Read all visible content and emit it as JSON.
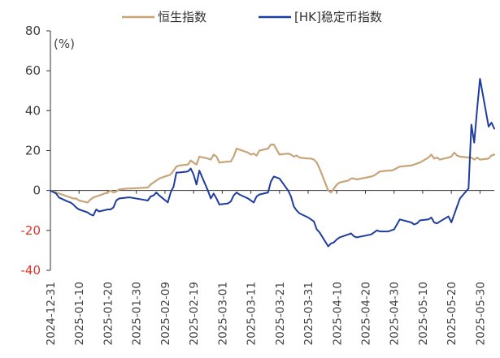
{
  "chart_data": {
    "type": "line",
    "unit_label": "(%)",
    "ylim": [
      -40,
      80
    ],
    "yticks": [
      -40,
      -20,
      0,
      20,
      40,
      60,
      80
    ],
    "xlim": [
      "2024-12-31",
      "2025-06-04"
    ],
    "xticks": [
      "2024-12-31",
      "2025-01-10",
      "2025-01-20",
      "2025-01-30",
      "2025-02-09",
      "2025-02-19",
      "2025-03-01",
      "2025-03-11",
      "2025-03-21",
      "2025-03-31",
      "2025-04-10",
      "2025-04-20",
      "2025-04-30",
      "2025-05-10",
      "2025-05-20",
      "2025-05-30"
    ],
    "grid": false,
    "legend_position": "top",
    "series": [
      {
        "name": "恒生指数",
        "color": "#c8a478",
        "points": [
          [
            "2024-12-31",
            0
          ],
          [
            "2025-01-02",
            -1
          ],
          [
            "2025-01-03",
            -1.5
          ],
          [
            "2025-01-06",
            -3
          ],
          [
            "2025-01-07",
            -3.5
          ],
          [
            "2025-01-08",
            -4
          ],
          [
            "2025-01-09",
            -4
          ],
          [
            "2025-01-10",
            -5
          ],
          [
            "2025-01-13",
            -6
          ],
          [
            "2025-01-14",
            -4.5
          ],
          [
            "2025-01-15",
            -3.5
          ],
          [
            "2025-01-16",
            -3
          ],
          [
            "2025-01-17",
            -2.5
          ],
          [
            "2025-01-20",
            -1
          ],
          [
            "2025-01-21",
            0
          ],
          [
            "2025-01-22",
            -1
          ],
          [
            "2025-01-23",
            -0.5
          ],
          [
            "2025-01-24",
            0.5
          ],
          [
            "2025-01-27",
            1
          ],
          [
            "2025-01-28",
            1
          ],
          [
            "2025-02-03",
            1.5
          ],
          [
            "2025-02-04",
            3
          ],
          [
            "2025-02-05",
            4
          ],
          [
            "2025-02-06",
            5
          ],
          [
            "2025-02-07",
            6
          ],
          [
            "2025-02-10",
            7.5
          ],
          [
            "2025-02-11",
            8
          ],
          [
            "2025-02-12",
            10
          ],
          [
            "2025-02-13",
            12
          ],
          [
            "2025-02-14",
            12.5
          ],
          [
            "2025-02-17",
            13
          ],
          [
            "2025-02-18",
            15
          ],
          [
            "2025-02-19",
            14
          ],
          [
            "2025-02-20",
            13
          ],
          [
            "2025-02-21",
            17
          ],
          [
            "2025-02-24",
            16
          ],
          [
            "2025-02-25",
            15.5
          ],
          [
            "2025-02-26",
            18
          ],
          [
            "2025-02-27",
            17
          ],
          [
            "2025-02-28",
            14
          ],
          [
            "2025-03-03",
            14.5
          ],
          [
            "2025-03-04",
            14.5
          ],
          [
            "2025-03-05",
            17
          ],
          [
            "2025-03-06",
            21
          ],
          [
            "2025-03-07",
            20.5
          ],
          [
            "2025-03-10",
            19
          ],
          [
            "2025-03-11",
            18
          ],
          [
            "2025-03-12",
            18.5
          ],
          [
            "2025-03-13",
            17.5
          ],
          [
            "2025-03-14",
            20
          ],
          [
            "2025-03-17",
            21
          ],
          [
            "2025-03-18",
            23
          ],
          [
            "2025-03-19",
            23
          ],
          [
            "2025-03-20",
            20.5
          ],
          [
            "2025-03-21",
            18
          ],
          [
            "2025-03-24",
            18.5
          ],
          [
            "2025-03-25",
            18
          ],
          [
            "2025-03-26",
            17
          ],
          [
            "2025-03-27",
            17.5
          ],
          [
            "2025-03-28",
            16.5
          ],
          [
            "2025-03-31",
            16
          ],
          [
            "2025-04-01",
            16
          ],
          [
            "2025-04-02",
            15.5
          ],
          [
            "2025-04-03",
            14
          ],
          [
            "2025-04-04",
            11
          ],
          [
            "2025-04-07",
            0
          ],
          [
            "2025-04-08",
            -1
          ],
          [
            "2025-04-09",
            1
          ],
          [
            "2025-04-10",
            3
          ],
          [
            "2025-04-11",
            4
          ],
          [
            "2025-04-14",
            5
          ],
          [
            "2025-04-15",
            6
          ],
          [
            "2025-04-16",
            6
          ],
          [
            "2025-04-17",
            5.5
          ],
          [
            "2025-04-22",
            7
          ],
          [
            "2025-04-23",
            7.5
          ],
          [
            "2025-04-24",
            8.5
          ],
          [
            "2025-04-25",
            9.5
          ],
          [
            "2025-04-28",
            10
          ],
          [
            "2025-04-29",
            10
          ],
          [
            "2025-04-30",
            10.5
          ],
          [
            "2025-05-02",
            12
          ],
          [
            "2025-05-06",
            12.5
          ],
          [
            "2025-05-07",
            13
          ],
          [
            "2025-05-08",
            13.5
          ],
          [
            "2025-05-09",
            14
          ],
          [
            "2025-05-12",
            16.5
          ],
          [
            "2025-05-13",
            18
          ],
          [
            "2025-05-14",
            16
          ],
          [
            "2025-05-15",
            16.5
          ],
          [
            "2025-05-16",
            15.5
          ],
          [
            "2025-05-19",
            16.5
          ],
          [
            "2025-05-20",
            17
          ],
          [
            "2025-05-21",
            19
          ],
          [
            "2025-05-22",
            17.5
          ],
          [
            "2025-05-23",
            17
          ],
          [
            "2025-05-26",
            16.5
          ],
          [
            "2025-05-27",
            16.5
          ],
          [
            "2025-05-28",
            15.5
          ],
          [
            "2025-05-29",
            16.5
          ],
          [
            "2025-05-30",
            15.5
          ],
          [
            "2025-06-02",
            16
          ],
          [
            "2025-06-03",
            17.5
          ],
          [
            "2025-06-04",
            18
          ]
        ]
      },
      {
        "name": "[HK]稳定币指数",
        "color": "#1f3d9e",
        "points": [
          [
            "2024-12-31",
            0
          ],
          [
            "2025-01-02",
            -1.5
          ],
          [
            "2025-01-03",
            -3.5
          ],
          [
            "2025-01-06",
            -5.5
          ],
          [
            "2025-01-07",
            -6
          ],
          [
            "2025-01-08",
            -7
          ],
          [
            "2025-01-09",
            -8.5
          ],
          [
            "2025-01-10",
            -9.5
          ],
          [
            "2025-01-13",
            -11
          ],
          [
            "2025-01-14",
            -12
          ],
          [
            "2025-01-15",
            -12.5
          ],
          [
            "2025-01-16",
            -9.5
          ],
          [
            "2025-01-17",
            -10.5
          ],
          [
            "2025-01-20",
            -9.5
          ],
          [
            "2025-01-21",
            -9.5
          ],
          [
            "2025-01-22",
            -8.5
          ],
          [
            "2025-01-23",
            -5
          ],
          [
            "2025-01-24",
            -4
          ],
          [
            "2025-01-27",
            -3.5
          ],
          [
            "2025-01-28",
            -3.5
          ],
          [
            "2025-02-03",
            -5
          ],
          [
            "2025-02-04",
            -3
          ],
          [
            "2025-02-05",
            -2.5
          ],
          [
            "2025-02-06",
            -1
          ],
          [
            "2025-02-07",
            -2.5
          ],
          [
            "2025-02-10",
            -6
          ],
          [
            "2025-02-11",
            -1
          ],
          [
            "2025-02-12",
            2
          ],
          [
            "2025-02-13",
            9
          ],
          [
            "2025-02-14",
            9
          ],
          [
            "2025-02-17",
            9.5
          ],
          [
            "2025-02-18",
            11
          ],
          [
            "2025-02-19",
            8
          ],
          [
            "2025-02-20",
            3
          ],
          [
            "2025-02-21",
            10
          ],
          [
            "2025-02-24",
            0
          ],
          [
            "2025-02-25",
            -4
          ],
          [
            "2025-02-26",
            -1.5
          ],
          [
            "2025-02-27",
            -4
          ],
          [
            "2025-02-28",
            -7
          ],
          [
            "2025-03-03",
            -6.5
          ],
          [
            "2025-03-04",
            -5.5
          ],
          [
            "2025-03-05",
            -2.5
          ],
          [
            "2025-03-06",
            -1
          ],
          [
            "2025-03-07",
            -2
          ],
          [
            "2025-03-10",
            -4
          ],
          [
            "2025-03-11",
            -5
          ],
          [
            "2025-03-12",
            -6
          ],
          [
            "2025-03-13",
            -3
          ],
          [
            "2025-03-14",
            -2
          ],
          [
            "2025-03-17",
            -1
          ],
          [
            "2025-03-18",
            4.5
          ],
          [
            "2025-03-19",
            7
          ],
          [
            "2025-03-20",
            6.5
          ],
          [
            "2025-03-21",
            6
          ],
          [
            "2025-03-24",
            0
          ],
          [
            "2025-03-25",
            -3
          ],
          [
            "2025-03-26",
            -8
          ],
          [
            "2025-03-27",
            -10
          ],
          [
            "2025-03-28",
            -11.5
          ],
          [
            "2025-03-31",
            -13.5
          ],
          [
            "2025-04-01",
            -14.5
          ],
          [
            "2025-04-02",
            -15.5
          ],
          [
            "2025-04-03",
            -19.5
          ],
          [
            "2025-04-04",
            -21
          ],
          [
            "2025-04-07",
            -28
          ],
          [
            "2025-04-08",
            -26.5
          ],
          [
            "2025-04-09",
            -26
          ],
          [
            "2025-04-10",
            -24.5
          ],
          [
            "2025-04-11",
            -23.5
          ],
          [
            "2025-04-14",
            -22
          ],
          [
            "2025-04-15",
            -21.5
          ],
          [
            "2025-04-16",
            -23
          ],
          [
            "2025-04-17",
            -23.5
          ],
          [
            "2025-04-22",
            -22
          ],
          [
            "2025-04-23",
            -21
          ],
          [
            "2025-04-24",
            -20
          ],
          [
            "2025-04-25",
            -20.5
          ],
          [
            "2025-04-28",
            -20.5
          ],
          [
            "2025-04-29",
            -20
          ],
          [
            "2025-04-30",
            -19.5
          ],
          [
            "2025-05-02",
            -14.5
          ],
          [
            "2025-05-06",
            -16
          ],
          [
            "2025-05-07",
            -17
          ],
          [
            "2025-05-08",
            -16.5
          ],
          [
            "2025-05-09",
            -15
          ],
          [
            "2025-05-12",
            -14.5
          ],
          [
            "2025-05-13",
            -13.5
          ],
          [
            "2025-05-14",
            -16
          ],
          [
            "2025-05-15",
            -16.5
          ],
          [
            "2025-05-16",
            -15.5
          ],
          [
            "2025-05-19",
            -13
          ],
          [
            "2025-05-20",
            -16
          ],
          [
            "2025-05-21",
            -12
          ],
          [
            "2025-05-22",
            -8
          ],
          [
            "2025-05-23",
            -4
          ],
          [
            "2025-05-26",
            1
          ],
          [
            "2025-05-27",
            33
          ],
          [
            "2025-05-28",
            24
          ],
          [
            "2025-05-29",
            41
          ],
          [
            "2025-05-30",
            56
          ],
          [
            "2025-06-02",
            32
          ],
          [
            "2025-06-03",
            34
          ],
          [
            "2025-06-04",
            31
          ]
        ]
      }
    ]
  }
}
